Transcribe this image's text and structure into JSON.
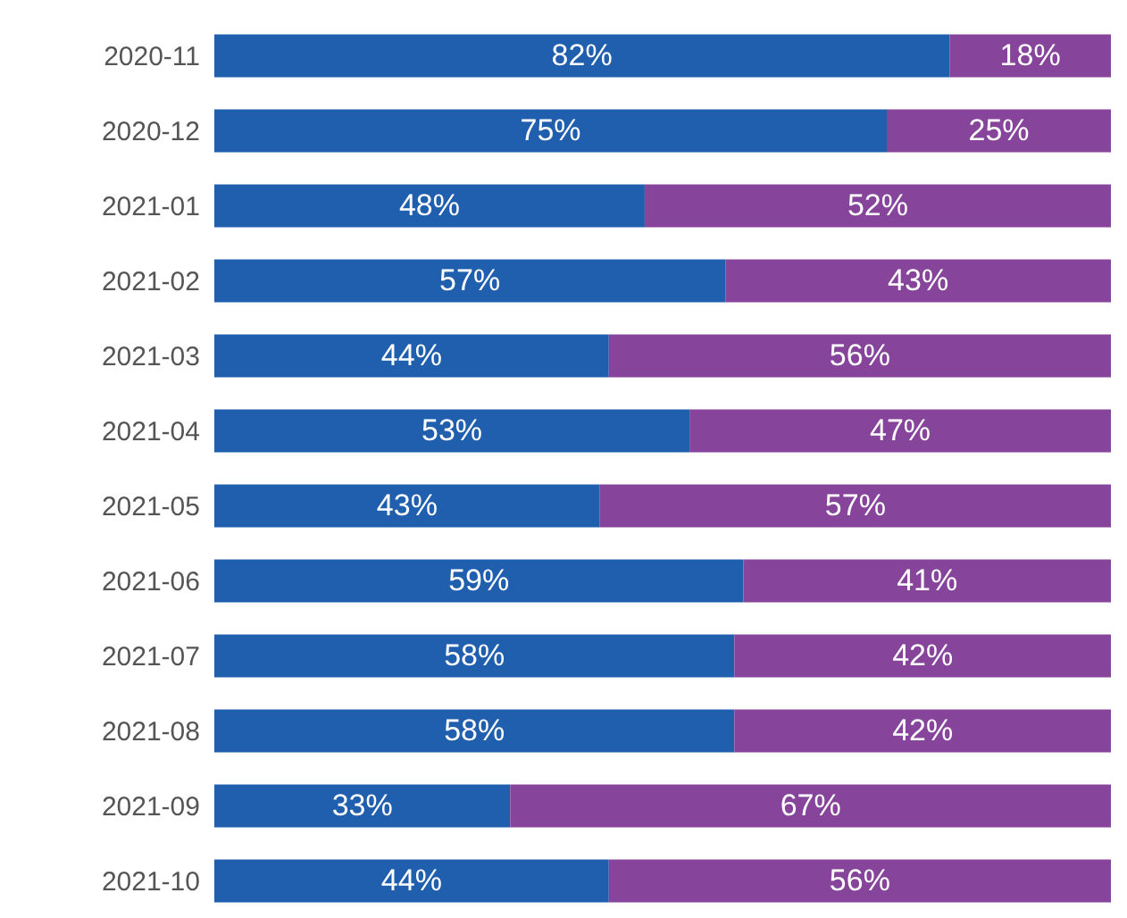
{
  "chart_data": {
    "type": "bar",
    "orientation": "horizontal",
    "stacked": true,
    "tick_labels": "y",
    "categories": [
      "2020-11",
      "2020-12",
      "2021-01",
      "2021-02",
      "2021-03",
      "2021-04",
      "2021-05",
      "2021-06",
      "2021-07",
      "2021-08",
      "2021-09",
      "2021-10"
    ],
    "series": [
      {
        "color": "#1f5fae",
        "values": [
          82,
          75,
          48,
          57,
          44,
          53,
          43,
          59,
          58,
          58,
          33,
          44
        ],
        "value_labels": [
          "82%",
          "75%",
          "48%",
          "57%",
          "44%",
          "53%",
          "43%",
          "59%",
          "58%",
          "58%",
          "33%",
          "44%"
        ]
      },
      {
        "color": "#86459b",
        "values": [
          18,
          25,
          52,
          43,
          56,
          47,
          57,
          41,
          42,
          42,
          67,
          56
        ],
        "value_labels": [
          "18%",
          "25%",
          "52%",
          "43%",
          "56%",
          "47%",
          "57%",
          "41%",
          "42%",
          "42%",
          "67%",
          "56%"
        ]
      }
    ]
  }
}
